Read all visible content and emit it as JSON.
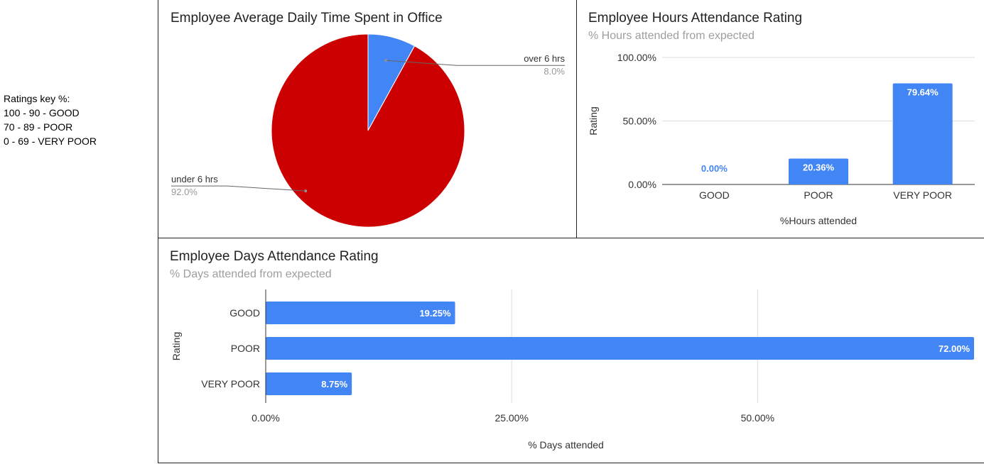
{
  "ratings_key": {
    "heading": "Ratings key %:",
    "lines": [
      "100 - 90 - GOOD",
      "70 - 89 - POOR",
      "0 - 69 - VERY POOR"
    ]
  },
  "chart_data": [
    {
      "type": "pie",
      "title": "Employee Average Daily Time Spent in Office",
      "slices": [
        {
          "label": "over 6 hrs",
          "value": 8.0,
          "display": "8.0%",
          "color": "#4285f4"
        },
        {
          "label": "under 6 hrs",
          "value": 92.0,
          "display": "92.0%",
          "color": "#cc0000"
        }
      ]
    },
    {
      "type": "bar",
      "title": "Employee Hours Attendance Rating",
      "subtitle": "% Hours attended from expected",
      "categories": [
        "GOOD",
        "POOR",
        "VERY POOR"
      ],
      "values": [
        0.0,
        20.36,
        79.64
      ],
      "value_labels": [
        "0.00%",
        "20.36%",
        "79.64%"
      ],
      "xlabel": "%Hours attended",
      "ylabel": "Rating",
      "ylim": [
        0,
        100
      ],
      "yticks": [
        0,
        50,
        100
      ],
      "ytick_labels": [
        "0.00%",
        "50.00%",
        "100.00%"
      ],
      "grid": true,
      "color": "#4285f4"
    },
    {
      "type": "bar",
      "orientation": "horizontal",
      "title": "Employee Days Attendance Rating",
      "subtitle": "% Days attended from expected",
      "categories": [
        "GOOD",
        "POOR",
        "VERY POOR"
      ],
      "values": [
        19.25,
        72.0,
        8.75
      ],
      "value_labels": [
        "19.25%",
        "72.00%",
        "8.75%"
      ],
      "xlabel": "% Days attended",
      "ylabel": "Rating",
      "xlim": [
        0,
        72
      ],
      "xticks": [
        0,
        25,
        50
      ],
      "xtick_labels": [
        "0.00%",
        "25.00%",
        "50.00%"
      ],
      "grid": true,
      "color": "#4285f4"
    }
  ]
}
